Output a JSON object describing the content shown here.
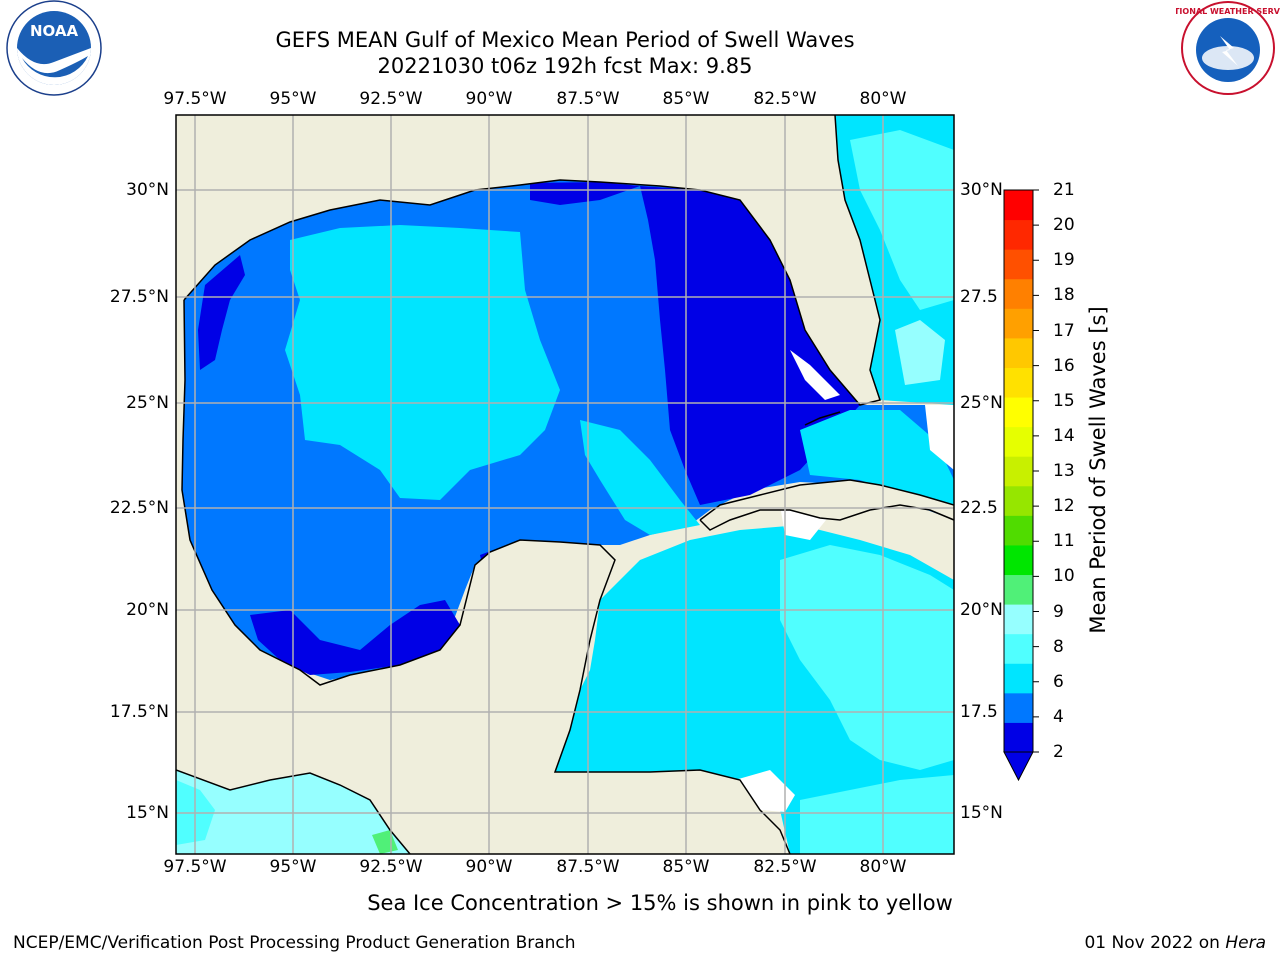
{
  "header": {
    "title_line1": "GEFS MEAN Gulf of Mexico Mean Period of Swell Waves",
    "title_line2": "20221030 t06z 192h fcst   Max: 9.85"
  },
  "axes": {
    "lon_ticks": [
      "97.5°W",
      "95°W",
      "92.5°W",
      "90°W",
      "87.5°W",
      "85°W",
      "82.5°W",
      "80°W"
    ],
    "lat_ticks_left": [
      "30°N",
      "27.5°N",
      "25°N",
      "22.5°N",
      "20°N",
      "17.5°N",
      "15°N"
    ],
    "lat_ticks_right": [
      "30°N",
      "27.5",
      "25°N",
      "22.5",
      "20°N",
      "17.5",
      "15°N"
    ]
  },
  "colorbar": {
    "label": "Mean Period of Swell Waves [s]",
    "ticks": [
      "21",
      "20",
      "19",
      "18",
      "17",
      "16",
      "15",
      "14",
      "13",
      "12",
      "11",
      "10",
      "9",
      "8",
      "6",
      "4",
      "2"
    ],
    "colors": [
      "#0000e6",
      "#0078ff",
      "#00e5ff",
      "#50ffff",
      "#96ffff",
      "#50f078",
      "#00e600",
      "#50dc00",
      "#96e600",
      "#c8f000",
      "#e6ff00",
      "#ffff00",
      "#ffe100",
      "#ffc800",
      "#ffa000",
      "#ff8000",
      "#ff5000",
      "#ff2800",
      "#ff0000"
    ]
  },
  "map": {
    "land_color": "#efeedc",
    "ocean_colors": {
      "deep_blue": "#0000e6",
      "blue": "#0078ff",
      "cyan": "#00e5ff",
      "light_cyan": "#50ffff",
      "pale_cyan": "#96ffff",
      "green": "#50f078"
    }
  },
  "footer": {
    "note": "Sea Ice Concentration > 15% is shown in pink to yellow",
    "credit": "NCEP/EMC/Verification Post Processing Product Generation Branch",
    "date_prefix": "01 Nov 2022 on ",
    "date_host": "Hera"
  },
  "logos": {
    "noaa_text": "NOAA",
    "nws_text": "NATIONAL WEATHER SERVICE"
  }
}
